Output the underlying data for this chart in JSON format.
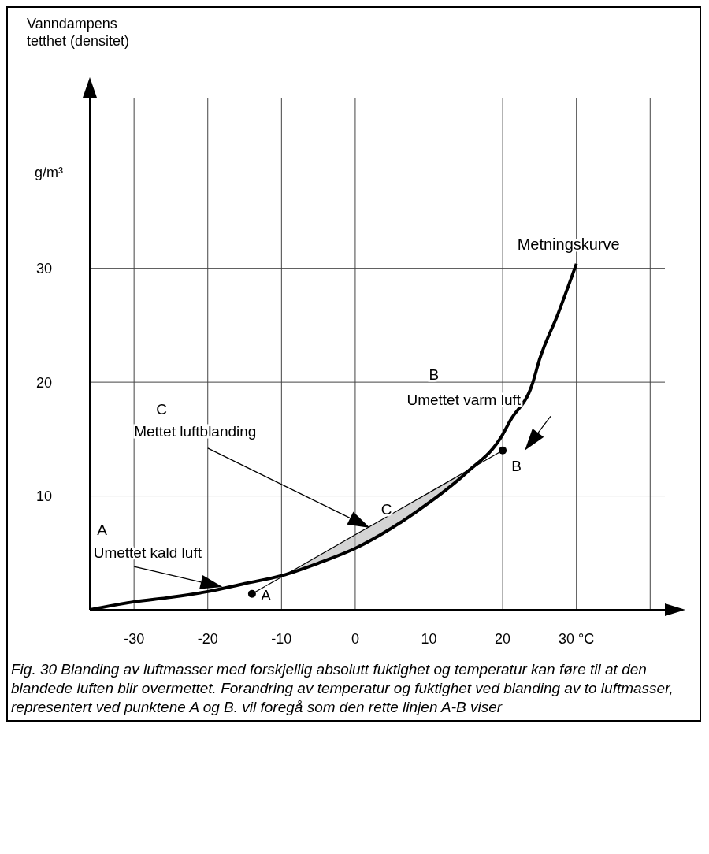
{
  "chart_data": {
    "type": "line",
    "ylabel": "Vanndampens tetthet (densitet)",
    "xlim": [
      -36,
      42
    ],
    "ylim": [
      0,
      45
    ],
    "xticks": [
      -30,
      -20,
      -10,
      0,
      10,
      20,
      {
        "value": 30,
        "label": "30 °C"
      },
      {
        "value": 40,
        "label": null
      }
    ],
    "yticks": [
      {
        "value": 0,
        "label": null
      },
      10,
      20,
      30
    ],
    "grid": true,
    "series": [
      {
        "name": "Metningskurve",
        "type": "line",
        "color": "#000000",
        "x": [
          -36,
          -30,
          -25,
          -20,
          -15,
          -10,
          -5,
          0,
          5,
          10,
          15,
          20,
          21,
          24,
          25,
          27.5,
          30
        ],
        "values": [
          0,
          0.7,
          1.1,
          1.6,
          2.3,
          3,
          4.1,
          5.4,
          7.2,
          9.4,
          12,
          15.4,
          16.6,
          19.8,
          22,
          26,
          30.4
        ]
      },
      {
        "type": "line",
        "color": "#000000",
        "x": [
          -14,
          -8,
          0,
          5,
          10,
          15,
          20
        ],
        "values": [
          1.4,
          3.62,
          6.59,
          8.44,
          10.29,
          12.15,
          14
        ],
        "lower": [
          null,
          3.5,
          5.4,
          7.2,
          9.4,
          12,
          null
        ],
        "upper": [
          null,
          3.62,
          6.59,
          8.44,
          10.29,
          12.15,
          null
        ]
      },
      {
        "type": "scatter",
        "color": "#000000",
        "marker": "circle",
        "x": [
          -14,
          20
        ],
        "values": [
          1.4,
          14
        ]
      }
    ],
    "annotations": [
      "g/m³",
      "A",
      "Umettet kald luft",
      "C",
      "Mettet luftblanding",
      "B",
      "Umettet varm luft",
      {
        "text": "A",
        "x": -14,
        "y": 1.4
      },
      {
        "text": "B",
        "x": 20,
        "y": 14
      },
      {
        "text": "C",
        "x": 3,
        "y": 7.6
      },
      "Fig. 30 Blanding av luftmasser med forskjellig absolutt fuktighet og temperatur kan føre til at den blandede luften blir overmettet. Forandring av temperatur og fuktighet ved blanding av to luftmasser, representert ved punktene A og B. vil foregå som den rette linjen A-B viser"
    ]
  }
}
